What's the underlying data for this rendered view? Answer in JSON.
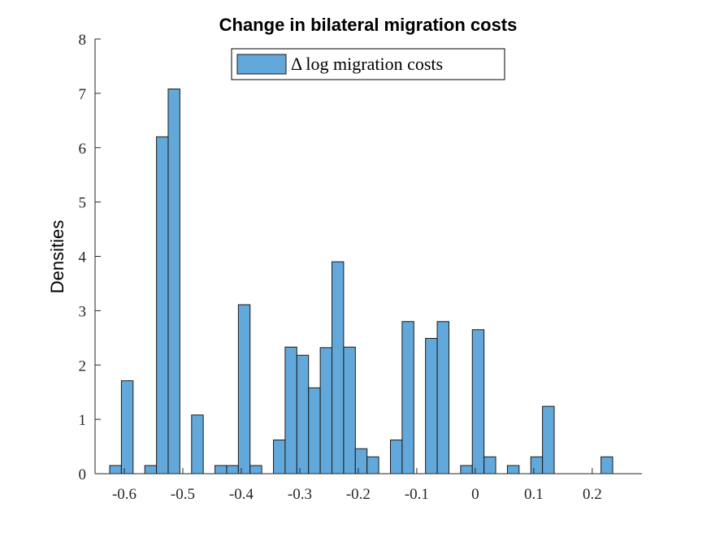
{
  "chart_data": {
    "type": "bar",
    "title": "Change in bilateral migration costs",
    "ylabel": "Densities",
    "xlabel": "",
    "legend": {
      "label": "Δ log migration costs",
      "position": "top"
    },
    "colors": {
      "bar_fill": "#62a8da",
      "bar_edge": "#1a1a1a"
    },
    "xlim": [
      -0.65,
      0.285
    ],
    "ylim": [
      0,
      8
    ],
    "xticks": [
      {
        "value": -0.6,
        "label": "-0.6"
      },
      {
        "value": -0.5,
        "label": "-0.5"
      },
      {
        "value": -0.4,
        "label": "-0.4"
      },
      {
        "value": -0.3,
        "label": "-0.3"
      },
      {
        "value": -0.2,
        "label": "-0.2"
      },
      {
        "value": -0.1,
        "label": "-0.1"
      },
      {
        "value": 0,
        "label": "0"
      },
      {
        "value": 0.1,
        "label": "0.1"
      },
      {
        "value": 0.2,
        "label": "0.2"
      }
    ],
    "yticks": [
      {
        "value": 0,
        "label": "0"
      },
      {
        "value": 1,
        "label": "1"
      },
      {
        "value": 2,
        "label": "2"
      },
      {
        "value": 3,
        "label": "3"
      },
      {
        "value": 4,
        "label": "4"
      },
      {
        "value": 5,
        "label": "5"
      },
      {
        "value": 6,
        "label": "6"
      },
      {
        "value": 7,
        "label": "7"
      },
      {
        "value": 8,
        "label": "8"
      }
    ],
    "bin_start": -0.625,
    "bin_width": 0.02,
    "densities": [
      0.15,
      1.71,
      0,
      0.15,
      6.2,
      7.08,
      0,
      1.08,
      0,
      0.15,
      0.15,
      3.11,
      0.15,
      0,
      0.62,
      2.33,
      2.18,
      1.58,
      2.32,
      3.9,
      2.33,
      0.46,
      0.31,
      0,
      0.62,
      2.8,
      0,
      2.49,
      2.8,
      0,
      0.15,
      2.65,
      0.31,
      0,
      0.15,
      0,
      0.31,
      1.24,
      0,
      0,
      0,
      0,
      0.31
    ]
  }
}
